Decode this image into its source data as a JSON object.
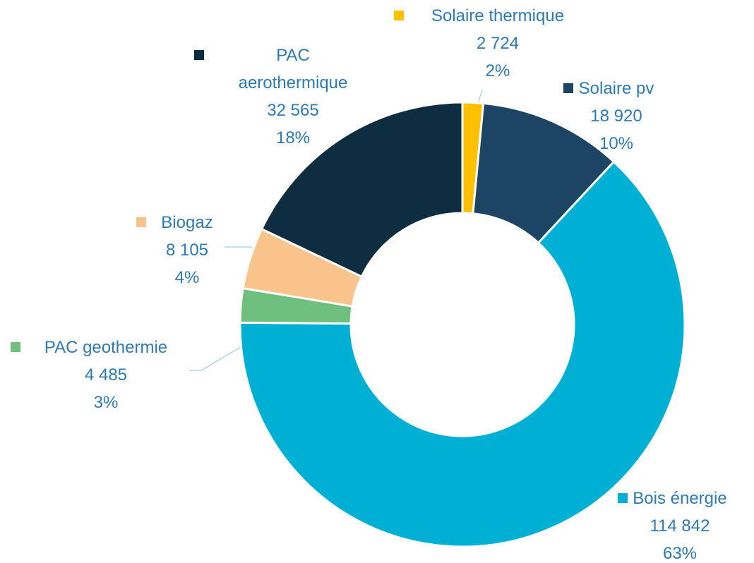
{
  "chart_data": {
    "type": "donut",
    "categories": [
      "Solaire thermique",
      "Solaire pv",
      "Bois énergie",
      "PAC geothermie",
      "Biogaz",
      "PAC aerothermique"
    ],
    "values": [
      2724,
      18920,
      114842,
      4485,
      8105,
      32565
    ],
    "value_labels": [
      "2 724",
      "18 920",
      "114 842",
      "4 485",
      "8 105",
      "32 565"
    ],
    "percent_labels": [
      "2%",
      "10%",
      "63%",
      "3%",
      "4%",
      "18%"
    ],
    "colors": [
      "#ffc000",
      "#1b4563",
      "#00b0d4",
      "#6fbf7e",
      "#f9c48c",
      "#0f2d40"
    ]
  }
}
